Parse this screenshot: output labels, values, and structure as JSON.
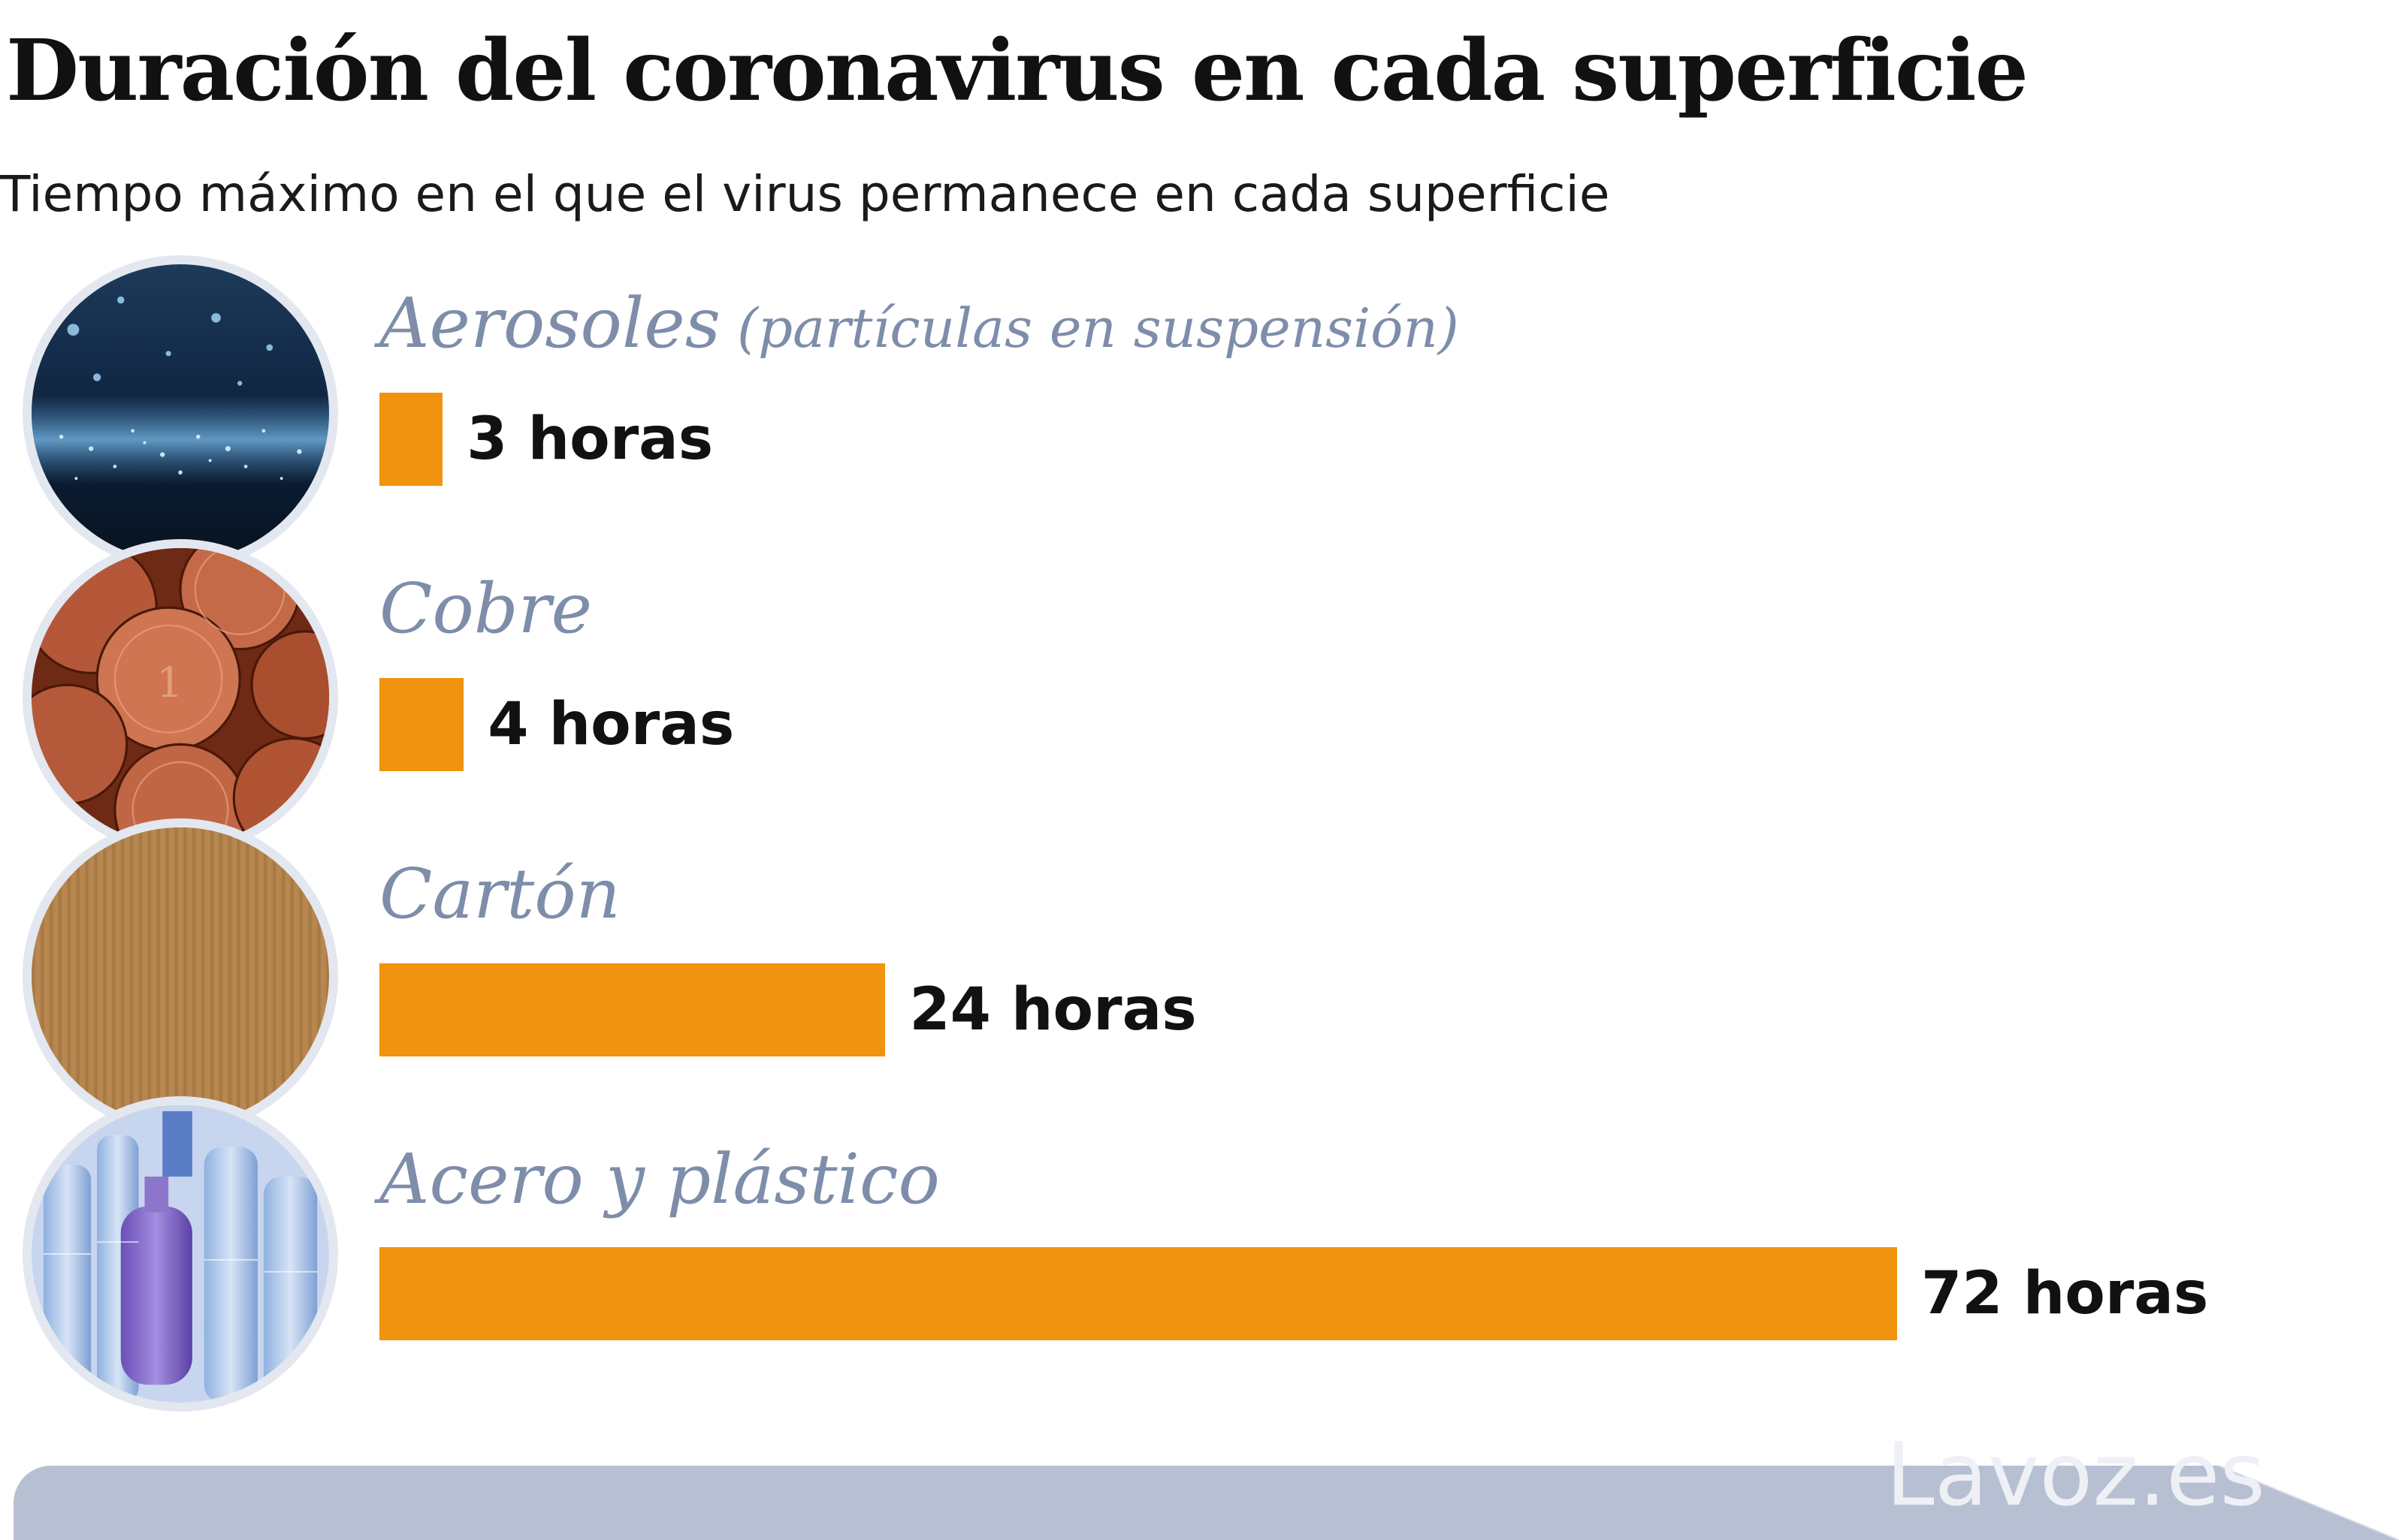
{
  "title": "Duración del coronavirus en cada superficie",
  "subtitle": "Tiempo máximo en el que el virus permanece en cada superficie",
  "brand": "Lavoz.es",
  "colors": {
    "bar": "#f0930e",
    "category_label": "#7d8daa",
    "footer": "#b7bfd2"
  },
  "chart_data": {
    "type": "bar",
    "orientation": "horizontal",
    "categories": [
      "Aerosoles",
      "Cobre",
      "Cartón",
      "Acero y plástico"
    ],
    "category_notes": [
      "(partículas en suspensión)",
      "",
      "",
      ""
    ],
    "values": [
      3,
      4,
      24,
      72
    ],
    "value_labels": [
      "3 horas",
      "4 horas",
      "24 horas",
      "72 horas"
    ],
    "unit": "horas",
    "xlim": [
      0,
      72
    ],
    "grid": false,
    "icons": [
      "aerosol-particles-image",
      "copper-coins-image",
      "cardboard-image",
      "plastic-bottles-image"
    ]
  }
}
